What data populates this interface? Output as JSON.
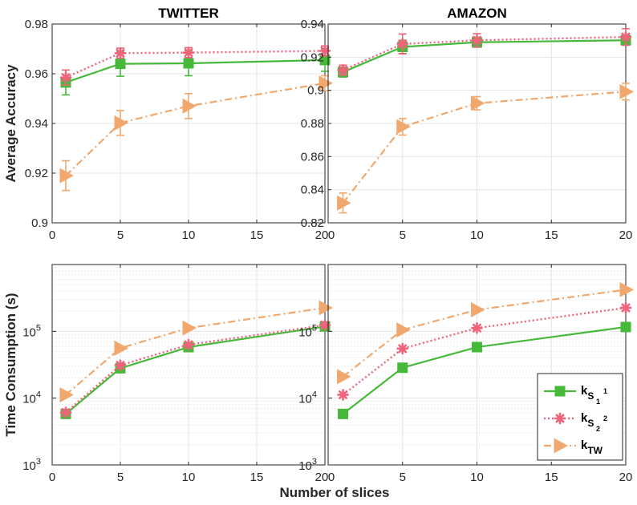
{
  "figure": {
    "xlabel": "Number of slices"
  },
  "colors": {
    "s1": "#46b93a",
    "s2": "#f0637a",
    "tw": "#f0a86e",
    "grid": "#e4e4e4",
    "axis": "#262626"
  },
  "legend": {
    "entries": [
      {
        "key": "s1",
        "base": "k",
        "sub": "S",
        "subsup": "1",
        "subsub": "1"
      },
      {
        "key": "s2",
        "base": "k",
        "sub": "S",
        "subsup": "2",
        "subsub": "2"
      },
      {
        "key": "tw",
        "base": "k",
        "sub": "TW"
      }
    ]
  },
  "chart_data": [
    {
      "id": "twitter-accuracy",
      "type": "line",
      "title": "TWITTER",
      "ylabel": "Average Accuracy",
      "xlabel": "",
      "xlim": [
        0,
        20
      ],
      "ylim": [
        0.9,
        0.98
      ],
      "yscale": "linear",
      "x": [
        1,
        5,
        10,
        20
      ],
      "xticks": [
        "0",
        "5",
        "10",
        "15",
        "20"
      ],
      "yticks": [
        "0.9",
        "0.92",
        "0.94",
        "0.96",
        "0.98"
      ],
      "series": [
        {
          "name": "k_S1",
          "key": "s1",
          "values": [
            0.9565,
            0.964,
            0.9642,
            0.9655
          ],
          "err": [
            0.005,
            0.005,
            0.005,
            0.0045
          ]
        },
        {
          "name": "k_S2",
          "key": "s2",
          "values": [
            0.9585,
            0.9683,
            0.9685,
            0.9692
          ],
          "err": [
            0.003,
            0.002,
            0.002,
            0.002
          ]
        },
        {
          "name": "k_TW",
          "key": "tw",
          "values": [
            0.919,
            0.9402,
            0.947,
            0.9562
          ],
          "err": [
            0.006,
            0.005,
            0.005,
            0.003
          ]
        }
      ]
    },
    {
      "id": "amazon-accuracy",
      "type": "line",
      "title": "AMAZON",
      "ylabel": "",
      "xlabel": "",
      "xlim": [
        0,
        20
      ],
      "ylim": [
        0.82,
        0.94
      ],
      "yscale": "linear",
      "x": [
        1,
        5,
        10,
        20
      ],
      "xticks": [
        "0",
        "5",
        "10",
        "15",
        "20"
      ],
      "yticks": [
        "0.82",
        "0.84",
        "0.86",
        "0.88",
        "0.9",
        "0.92",
        "0.94"
      ],
      "series": [
        {
          "name": "k_S1",
          "key": "s1",
          "values": [
            0.911,
            0.9262,
            0.929,
            0.9302
          ],
          "err": [
            0.003,
            0.004,
            0.003,
            0.003
          ]
        },
        {
          "name": "k_S2",
          "key": "s2",
          "values": [
            0.9122,
            0.928,
            0.9302,
            0.9322
          ],
          "err": [
            0.003,
            0.006,
            0.004,
            0.005
          ]
        },
        {
          "name": "k_TW",
          "key": "tw",
          "values": [
            0.832,
            0.878,
            0.8922,
            0.8992
          ],
          "err": [
            0.006,
            0.005,
            0.004,
            0.005
          ]
        }
      ]
    },
    {
      "id": "twitter-time",
      "type": "line",
      "title": "",
      "ylabel": "Time Consumption (s)",
      "xlabel": "",
      "xlim": [
        0,
        20
      ],
      "ylim": [
        1000,
        1000000
      ],
      "yscale": "log",
      "x": [
        1,
        5,
        10,
        20
      ],
      "xticks": [
        "0",
        "5",
        "10",
        "15",
        "20"
      ],
      "yticks": [
        {
          "base": "10",
          "exp": "3"
        },
        {
          "base": "10",
          "exp": "4"
        },
        {
          "base": "10",
          "exp": "5"
        }
      ],
      "series": [
        {
          "name": "k_S1",
          "key": "s1",
          "values": [
            5800,
            28000,
            58000,
            118000
          ]
        },
        {
          "name": "k_S2",
          "key": "s2",
          "values": [
            6100,
            31000,
            63000,
            124000
          ]
        },
        {
          "name": "k_TW",
          "key": "tw",
          "values": [
            11200,
            56000,
            112000,
            225000
          ]
        }
      ]
    },
    {
      "id": "amazon-time",
      "type": "line",
      "title": "",
      "ylabel": "",
      "xlabel": "",
      "xlim": [
        0,
        20
      ],
      "ylim": [
        1000,
        1000000
      ],
      "yscale": "log",
      "x": [
        1,
        5,
        10,
        20
      ],
      "xticks": [
        "0",
        "5",
        "10",
        "15",
        "20"
      ],
      "yticks": [
        {
          "base": "10",
          "exp": "3"
        },
        {
          "base": "10",
          "exp": "4"
        },
        {
          "base": "10",
          "exp": "5"
        }
      ],
      "series": [
        {
          "name": "k_S1",
          "key": "s1",
          "values": [
            5800,
            28500,
            58000,
            116000
          ]
        },
        {
          "name": "k_S2",
          "key": "s2",
          "values": [
            11200,
            55000,
            112000,
            225000
          ]
        },
        {
          "name": "k_TW",
          "key": "tw",
          "values": [
            21000,
            105000,
            210000,
            420000
          ]
        }
      ]
    }
  ]
}
